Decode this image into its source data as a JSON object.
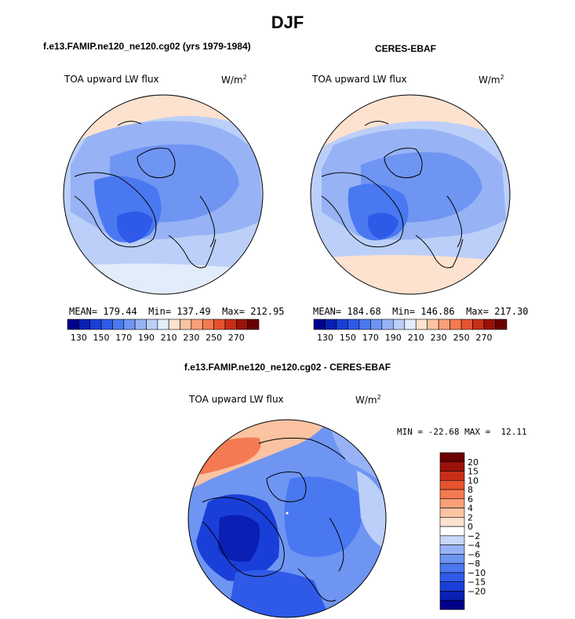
{
  "title": "DJF",
  "panels": [
    {
      "heading": "f.e13.FAMIP.ne120_ne120.cg02 (yrs 1979-1984)",
      "variable": "TOA upward LW flux",
      "units": "W/m",
      "units_sup": "2",
      "stats": "MEAN= 179.44  Min= 137.49  Max= 212.95"
    },
    {
      "heading": "CERES-EBAF",
      "variable": "TOA upward LW flux",
      "units": "W/m",
      "units_sup": "2",
      "stats": "MEAN= 184.68  Min= 146.86  Max= 217.30"
    }
  ],
  "difference": {
    "heading": "f.e13.FAMIP.ne120_ne120.cg02 - CERES-EBAF",
    "variable": "TOA upward LW flux",
    "units": "W/m",
    "units_sup": "2",
    "stats": "MIN = -22.68 MAX =  12.11"
  },
  "colors": {
    "abs_scale": [
      "#00008b",
      "#0a1fb3",
      "#1a3fd8",
      "#2f5ae8",
      "#4a78f0",
      "#6f95f3",
      "#97b3f5",
      "#bccff8",
      "#e3ecfb",
      "#fde2cf",
      "#fbc3a2",
      "#f9a07a",
      "#f47a52",
      "#e5532f",
      "#c92f18",
      "#9b1208",
      "#6a0000"
    ],
    "diff_scale": [
      "#00008b",
      "#0a1fb3",
      "#1a3fd8",
      "#2f5ae8",
      "#4a78f0",
      "#6f95f3",
      "#97b3f5",
      "#c8d8f9",
      "#ffffff",
      "#fde2cf",
      "#fbc3a2",
      "#f9a07a",
      "#f47a52",
      "#e5532f",
      "#c92f18",
      "#9b1208",
      "#6a0000"
    ]
  },
  "chart_data": [
    {
      "type": "heatmap",
      "projection": "north-polar-stereographic",
      "title": "TOA upward LW flux",
      "units": "W/m2",
      "stats": {
        "mean": 179.44,
        "min": 137.49,
        "max": 212.95
      },
      "colorbar_levels": [
        130,
        150,
        170,
        190,
        210,
        230,
        250,
        270
      ]
    },
    {
      "type": "heatmap",
      "projection": "north-polar-stereographic",
      "title": "TOA upward LW flux",
      "units": "W/m2",
      "stats": {
        "mean": 184.68,
        "min": 146.86,
        "max": 217.3
      },
      "colorbar_levels": [
        130,
        150,
        170,
        190,
        210,
        230,
        250,
        270
      ]
    },
    {
      "type": "heatmap",
      "projection": "north-polar-stereographic",
      "title": "TOA upward LW flux (difference)",
      "units": "W/m2",
      "stats": {
        "min": -22.68,
        "max": 12.11
      },
      "colorbar_levels": [
        "20",
        "15",
        "10",
        "8",
        "6",
        "4",
        "2",
        "0",
        "−2",
        "−4",
        "−6",
        "−8",
        "−10",
        "−15",
        "−20"
      ]
    }
  ]
}
